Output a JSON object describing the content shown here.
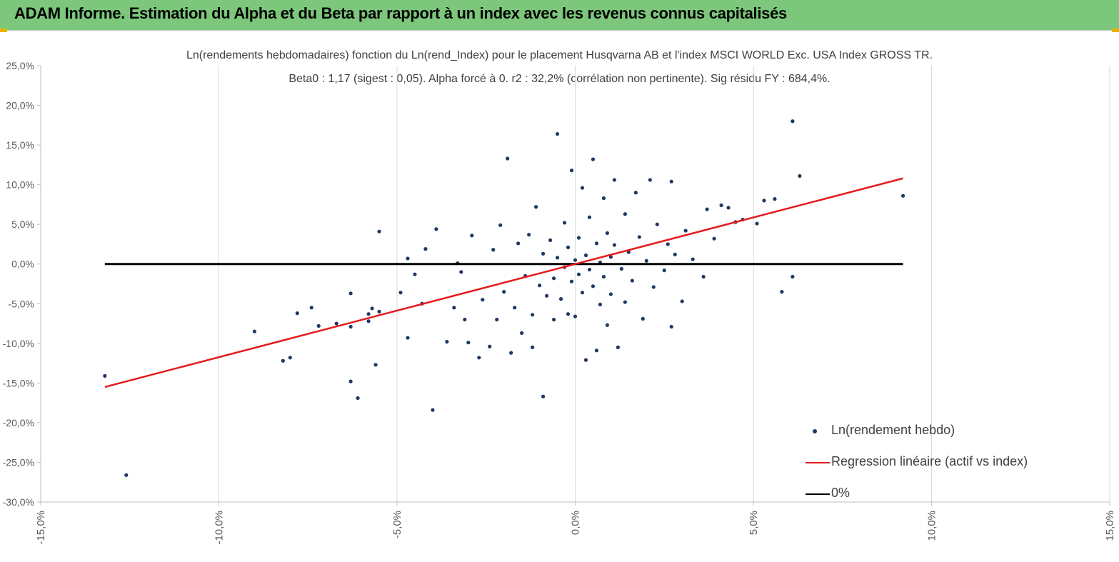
{
  "banner": {
    "title": "ADAM Informe. Estimation du Alpha et du Beta par rapport à un index avec les revenus connus capitalisés"
  },
  "colors": {
    "banner_bg": "#7cc77c",
    "accent_mark": "#e8b400",
    "scatter": "#1f3864",
    "regression": "#e41a1c",
    "zero_line": "#000000",
    "grid": "#d9d9d9"
  },
  "chart_data": {
    "type": "scatter",
    "title": "Ln(rendements hebdomadaires) fonction du Ln(rend_Index) pour le placement Husqvarna AB et l'index MSCI WORLD Exc. USA Index GROSS TR.",
    "subtitle": "Beta0 : 1,17 (sigest : 0,05). Alpha forcé à 0. r2 : 32,2% (corrélation non pertinente). Sig résidu FY : 684,4%.",
    "xlim": [
      -15,
      15
    ],
    "ylim": [
      -30,
      25
    ],
    "x_ticks": [
      "-15,0%",
      "-10,0%",
      "-5,0%",
      "0,0%",
      "5,0%",
      "10,0%",
      "15,0%"
    ],
    "y_ticks": [
      "25,0%",
      "20,0%",
      "15,0%",
      "10,0%",
      "5,0%",
      "0,0%",
      "-5,0%",
      "-10,0%",
      "-15,0%",
      "-20,0%",
      "-25,0%",
      "-30,0%"
    ],
    "grid": "vertical",
    "legend_position": "bottom-right",
    "series": [
      {
        "name": "Ln(rendement hebdo)",
        "kind": "scatter",
        "points": [
          [
            -13.2,
            -14.1
          ],
          [
            -12.6,
            -26.6
          ],
          [
            -9.0,
            -8.5
          ],
          [
            -8.2,
            -12.2
          ],
          [
            -8.0,
            -11.8
          ],
          [
            -7.8,
            -6.2
          ],
          [
            -7.4,
            -5.5
          ],
          [
            -7.2,
            -7.8
          ],
          [
            -6.7,
            -7.5
          ],
          [
            -6.3,
            -3.7
          ],
          [
            -6.3,
            -7.9
          ],
          [
            -6.3,
            -14.8
          ],
          [
            -6.1,
            -16.9
          ],
          [
            -5.8,
            -7.2
          ],
          [
            -5.8,
            -6.3
          ],
          [
            -5.7,
            -5.6
          ],
          [
            -5.6,
            -12.7
          ],
          [
            -5.5,
            4.1
          ],
          [
            -5.5,
            -6.0
          ],
          [
            -4.9,
            -3.6
          ],
          [
            -4.7,
            0.7
          ],
          [
            -4.7,
            -9.3
          ],
          [
            -4.5,
            -1.3
          ],
          [
            -4.3,
            -5.0
          ],
          [
            -4.2,
            1.9
          ],
          [
            -4.0,
            -18.4
          ],
          [
            -3.9,
            4.4
          ],
          [
            -3.6,
            -9.8
          ],
          [
            -3.4,
            -5.5
          ],
          [
            -3.3,
            0.1
          ],
          [
            -3.2,
            -1.0
          ],
          [
            -3.1,
            -7.0
          ],
          [
            -3.0,
            -9.9
          ],
          [
            -2.9,
            3.6
          ],
          [
            -2.7,
            -11.8
          ],
          [
            -2.6,
            -4.5
          ],
          [
            -2.4,
            -10.4
          ],
          [
            -2.3,
            1.8
          ],
          [
            -2.2,
            -7.0
          ],
          [
            -2.1,
            4.9
          ],
          [
            -2.0,
            -3.5
          ],
          [
            -1.9,
            13.3
          ],
          [
            -1.8,
            -11.2
          ],
          [
            -1.7,
            -5.5
          ],
          [
            -1.6,
            2.6
          ],
          [
            -1.5,
            -8.7
          ],
          [
            -1.4,
            -1.5
          ],
          [
            -1.3,
            3.7
          ],
          [
            -1.2,
            -6.4
          ],
          [
            -1.2,
            -10.5
          ],
          [
            -1.1,
            7.2
          ],
          [
            -1.0,
            -2.7
          ],
          [
            -0.9,
            1.3
          ],
          [
            -0.9,
            -16.7
          ],
          [
            -0.8,
            -4.0
          ],
          [
            -0.7,
            3.0
          ],
          [
            -0.6,
            -7.0
          ],
          [
            -0.6,
            -1.8
          ],
          [
            -0.5,
            0.8
          ],
          [
            -0.5,
            16.4
          ],
          [
            -0.4,
            -4.4
          ],
          [
            -0.3,
            5.2
          ],
          [
            -0.3,
            -0.4
          ],
          [
            -0.2,
            -6.3
          ],
          [
            -0.2,
            2.1
          ],
          [
            -0.1,
            11.8
          ],
          [
            -0.1,
            -2.2
          ],
          [
            0.0,
            0.5
          ],
          [
            0.0,
            -6.6
          ],
          [
            0.1,
            3.3
          ],
          [
            0.1,
            -1.3
          ],
          [
            0.2,
            9.6
          ],
          [
            0.2,
            -3.6
          ],
          [
            0.3,
            1.1
          ],
          [
            0.3,
            -12.1
          ],
          [
            0.4,
            5.9
          ],
          [
            0.4,
            -0.7
          ],
          [
            0.5,
            -2.8
          ],
          [
            0.5,
            13.2
          ],
          [
            0.6,
            2.6
          ],
          [
            0.6,
            -10.9
          ],
          [
            0.7,
            0.2
          ],
          [
            0.7,
            -5.1
          ],
          [
            0.8,
            8.3
          ],
          [
            0.8,
            -1.6
          ],
          [
            0.9,
            3.9
          ],
          [
            0.9,
            -7.7
          ],
          [
            1.0,
            0.9
          ],
          [
            1.0,
            -3.8
          ],
          [
            1.1,
            10.6
          ],
          [
            1.1,
            2.4
          ],
          [
            1.2,
            -10.5
          ],
          [
            1.3,
            -0.6
          ],
          [
            1.4,
            6.3
          ],
          [
            1.4,
            -4.8
          ],
          [
            1.5,
            1.5
          ],
          [
            1.6,
            -2.1
          ],
          [
            1.7,
            9.0
          ],
          [
            1.8,
            3.4
          ],
          [
            1.9,
            -6.9
          ],
          [
            2.0,
            0.4
          ],
          [
            2.1,
            10.6
          ],
          [
            2.2,
            -2.9
          ],
          [
            2.3,
            5.0
          ],
          [
            2.5,
            -0.8
          ],
          [
            2.6,
            2.5
          ],
          [
            2.7,
            -7.9
          ],
          [
            2.7,
            10.4
          ],
          [
            2.8,
            1.2
          ],
          [
            3.0,
            -4.7
          ],
          [
            3.1,
            4.2
          ],
          [
            3.3,
            0.6
          ],
          [
            3.6,
            -1.6
          ],
          [
            3.7,
            6.9
          ],
          [
            3.9,
            3.2
          ],
          [
            4.1,
            7.4
          ],
          [
            4.3,
            7.1
          ],
          [
            4.5,
            5.3
          ],
          [
            4.7,
            5.6
          ],
          [
            5.1,
            5.1
          ],
          [
            5.3,
            8.0
          ],
          [
            5.6,
            8.2
          ],
          [
            5.8,
            -3.5
          ],
          [
            6.1,
            18.0
          ],
          [
            6.1,
            -1.6
          ],
          [
            6.3,
            11.1
          ],
          [
            9.2,
            8.6
          ]
        ]
      },
      {
        "name": "Regression linéaire (actif vs index)",
        "kind": "line",
        "points": [
          [
            -13.2,
            -15.5
          ],
          [
            9.2,
            10.8
          ]
        ]
      },
      {
        "name": "0%",
        "kind": "line",
        "points": [
          [
            -13.2,
            0.0
          ],
          [
            9.2,
            0.0
          ]
        ]
      }
    ]
  }
}
